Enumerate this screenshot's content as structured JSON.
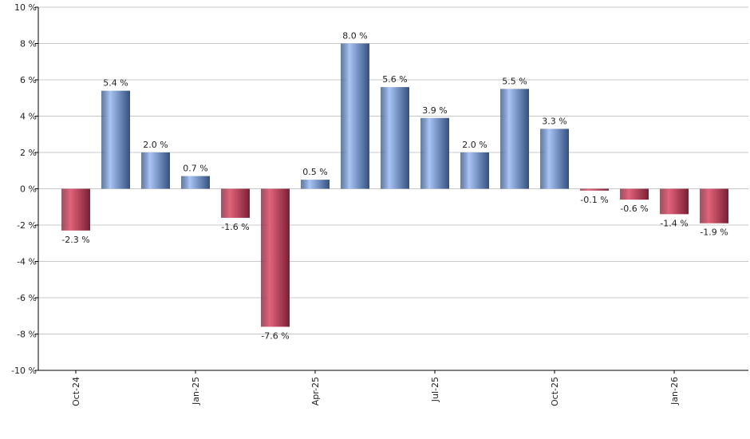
{
  "chart_data": {
    "type": "bar",
    "categories": [
      "Oct-24",
      null,
      null,
      "Jan-25",
      null,
      null,
      "Apr-25",
      null,
      null,
      "Jul-25",
      null,
      null,
      "Oct-25",
      null,
      null,
      "Jan-26",
      null
    ],
    "values": [
      -2.3,
      5.4,
      2.0,
      0.7,
      -1.6,
      -7.6,
      0.5,
      8.0,
      5.6,
      3.9,
      2.0,
      5.5,
      3.3,
      -0.1,
      -0.6,
      -1.4,
      -1.9
    ],
    "value_labels": [
      "-2.3 %",
      "5.4 %",
      "2.0 %",
      "0.7 %",
      "-1.6 %",
      "-7.6 %",
      "0.5 %",
      "8.0 %",
      "5.6 %",
      "3.9 %",
      "2.0 %",
      "5.5 %",
      "3.3 %",
      "-0.1 %",
      "-0.6 %",
      "-1.4 %",
      "-1.9 %"
    ],
    "colors": {
      "positive": [
        "#a9c4f5",
        "#33507f"
      ],
      "negative": [
        "#e2647c",
        "#7a1f33"
      ]
    },
    "ylim": [
      -10,
      10
    ],
    "yticks": [
      {
        "value": -10,
        "label": "-10 %"
      },
      {
        "value": -8,
        "label": "-8 %"
      },
      {
        "value": -6,
        "label": "-6 %"
      },
      {
        "value": -4,
        "label": "-4 %"
      },
      {
        "value": -2,
        "label": "-2 %"
      },
      {
        "value": 0,
        "label": "0 %"
      },
      {
        "value": 2,
        "label": "2 %"
      },
      {
        "value": 4,
        "label": "4 %"
      },
      {
        "value": 6,
        "label": "6 %"
      },
      {
        "value": 8,
        "label": "8 %"
      },
      {
        "value": 10,
        "label": "10 %"
      }
    ],
    "grid": true
  }
}
